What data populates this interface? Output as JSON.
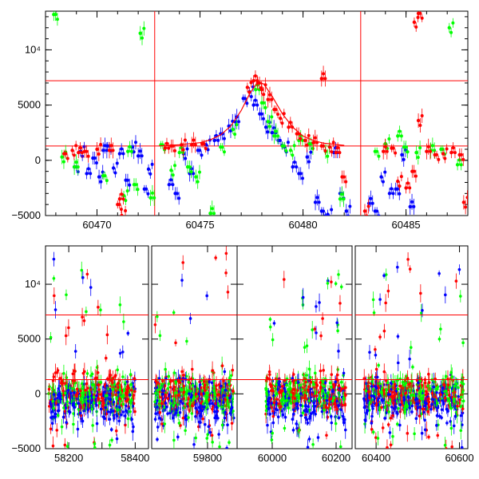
{
  "chart_data": [
    {
      "type": "scatter",
      "title": "",
      "xlabel": "",
      "ylabel": "",
      "xlim": [
        60467.5,
        60488
      ],
      "ylim": [
        -5000,
        13500
      ],
      "x_ticks": [
        60470,
        60475,
        60480,
        60485
      ],
      "y_ticks": [
        -5000,
        0,
        5000,
        10000
      ],
      "y_tick_labels": [
        "−5000",
        "0",
        "5000",
        "10⁴"
      ],
      "horizontal_lines": [
        1300,
        7200
      ],
      "vertical_lines": [
        60472.8,
        60482.8
      ],
      "fit_curve": {
        "color": "#ff0000",
        "x": [
          60473.0,
          60474.0,
          60475.0,
          60475.5,
          60476.0,
          60476.5,
          60477.0,
          60477.4,
          60477.8,
          60478.1,
          60478.5,
          60479.0,
          60479.5,
          60480.0,
          60480.5,
          60481.0,
          60482.0
        ],
        "y": [
          1300,
          1400,
          1600,
          1850,
          2300,
          3100,
          4500,
          6000,
          7100,
          6900,
          5800,
          4200,
          3000,
          2200,
          1800,
          1550,
          1350
        ]
      },
      "series": [
        {
          "color": "#0000ff",
          "x": [
            60468.9,
            60469.2,
            60469.5,
            60469.8,
            60470.1,
            60470.3,
            60470.5,
            60470.8,
            60471.1,
            60471.4,
            60471.7,
            60472.0,
            60472.3,
            60472.5,
            60473.5,
            60473.8,
            60474.2,
            60474.5,
            60474.9,
            60475.3,
            60475.7,
            60476.0,
            60476.4,
            60476.7,
            60477.1,
            60477.4,
            60477.6,
            60477.9,
            60478.2,
            60478.5,
            60478.8,
            60479.1,
            60479.5,
            60479.8,
            60480.2,
            60480.6,
            60480.9,
            60481.2,
            60481.5,
            60481.8,
            60482.1,
            60483.2,
            60483.5,
            60483.8,
            60484.2,
            60484.5,
            60484.8,
            60485.2
          ],
          "y": [
            -600,
            800,
            -1200,
            200,
            -1500,
            900,
            1300,
            -700,
            600,
            -1800,
            1200,
            400,
            -2600,
            -800,
            -2200,
            -3000,
            600,
            -1200,
            900,
            1400,
            1800,
            2400,
            3100,
            3500,
            5600,
            6200,
            5000,
            4200,
            3000,
            2500,
            1800,
            1200,
            -600,
            -1200,
            300,
            -3800,
            -4600,
            -4900,
            700,
            -3000,
            -4600,
            -3900,
            -4600,
            -1500,
            -3000,
            -2600,
            500,
            -4200
          ]
        },
        {
          "color": "#00ff00",
          "x": [
            60467.9,
            60468.3,
            60468.9,
            60470.3,
            60471.3,
            60471.5,
            60471.8,
            60472.1,
            60472.6,
            60473.1,
            60473.6,
            60474.0,
            60474.4,
            60474.8,
            60475.5,
            60476.0,
            60476.6,
            60477.7,
            60478.0,
            60478.3,
            60478.6,
            60479.0,
            60479.4,
            60479.8,
            60480.3,
            60481.1,
            60481.8,
            60483.5,
            60484.0,
            60484.6,
            60484.9,
            60485.5,
            60486.2,
            60486.7,
            60487.1,
            60487.5
          ],
          "y": [
            13200,
            300,
            -600,
            -1400,
            -3200,
            800,
            -2200,
            11500,
            -3400,
            1400,
            -900,
            700,
            -600,
            -1500,
            -4800,
            1200,
            2800,
            6400,
            5200,
            3500,
            2200,
            1300,
            900,
            1800,
            1500,
            800,
            -3500,
            800,
            1500,
            2200,
            1200,
            700,
            900,
            1000,
            12000,
            -400
          ]
        },
        {
          "color": "#ff0000",
          "x": [
            60468.4,
            60468.8,
            60469.1,
            60469.4,
            60470.0,
            60470.6,
            60471.0,
            60471.2,
            60473.3,
            60473.6,
            60474.1,
            60474.6,
            60475.1,
            60477.3,
            60477.6,
            60477.8,
            60478.0,
            60478.3,
            60478.6,
            60478.9,
            60479.3,
            60479.7,
            60480.1,
            60480.5,
            60480.9,
            60481.3,
            60481.6,
            60481.9,
            60483.0,
            60483.9,
            60484.3,
            60484.6,
            60485.0,
            60485.3,
            60485.6,
            60486.0,
            60486.4,
            60486.8,
            60487.2,
            60487.6,
            60487.8,
            60480.9,
            60485.6,
            60485.4,
            60471.1
          ],
          "y": [
            600,
            900,
            700,
            800,
            1000,
            900,
            -4000,
            -5000,
            1100,
            1300,
            1400,
            1400,
            1500,
            6600,
            7200,
            7000,
            6400,
            5500,
            4600,
            3800,
            3000,
            2400,
            1800,
            1600,
            1300,
            1200,
            700,
            -1500,
            -4600,
            800,
            1100,
            -1900,
            -2500,
            -1000,
            3600,
            800,
            500,
            600,
            700,
            500,
            -3800,
            7400,
            13300,
            12500,
            -3500
          ]
        }
      ]
    },
    {
      "type": "scatter",
      "title": "",
      "xlabel": "",
      "ylabel": "",
      "ylim": [
        -5000,
        13500
      ],
      "y_ticks": [
        -5000,
        0,
        5000,
        10000
      ],
      "y_tick_labels": [
        "−5000",
        "0",
        "5000",
        "10⁴"
      ],
      "horizontal_lines": [
        1300,
        7200
      ],
      "segments": [
        {
          "xlim": [
            58130,
            58440
          ],
          "x_ticks": [
            58200,
            58300,
            58400
          ],
          "x_tick_labels": [
            "58200",
            "",
            "58400"
          ],
          "clusters": [
            [
              58140,
              58400
            ]
          ]
        },
        {
          "xlim": [
            59630,
            59890
          ],
          "x_ticks": [
            59800
          ],
          "x_tick_labels": [
            "59800"
          ],
          "clusters": [
            [
              59640,
              59880
            ]
          ]
        },
        {
          "xlim": [
            59890,
            60250
          ],
          "x_ticks": [
            60000,
            60200
          ],
          "x_tick_labels": [
            "60000",
            "60200"
          ],
          "clusters": [
            [
              59980,
              60230
            ]
          ]
        },
        {
          "xlim": [
            60350,
            60620
          ],
          "x_ticks": [
            60400,
            60600
          ],
          "x_tick_labels": [
            "60400",
            "60600"
          ],
          "clusters": [
            [
              60370,
              60610
            ]
          ]
        }
      ],
      "note_density": "dense noise band roughly -2000 to 2000 with scattered outliers up to 13000"
    }
  ]
}
